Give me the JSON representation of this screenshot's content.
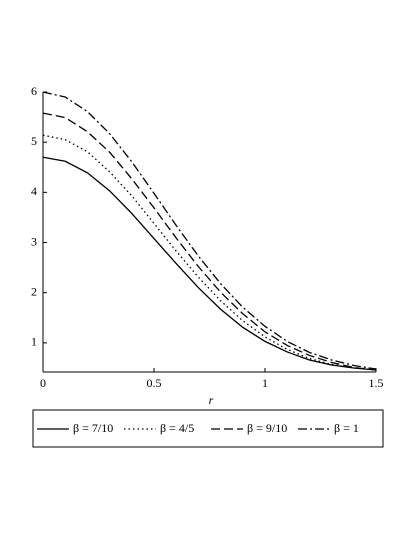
{
  "chart_data": {
    "type": "line",
    "x_label": "r",
    "x": [
      0,
      0.1,
      0.2,
      0.3,
      0.4,
      0.5,
      0.6,
      0.7,
      0.8,
      0.9,
      1.0,
      1.1,
      1.2,
      1.3,
      1.4,
      1.5
    ],
    "series": [
      {
        "name": "β = 7/10",
        "color": "#000000",
        "dash": "solid",
        "values": [
          4.7,
          4.62,
          4.39,
          4.03,
          3.58,
          3.08,
          2.58,
          2.1,
          1.67,
          1.31,
          1.03,
          0.82,
          0.66,
          0.56,
          0.5,
          0.46
        ]
      },
      {
        "name": "β = 4/5",
        "color": "#000000",
        "dash": "dotted",
        "values": [
          5.14,
          5.05,
          4.81,
          4.41,
          3.93,
          3.38,
          2.83,
          2.31,
          1.84,
          1.44,
          1.12,
          0.87,
          0.69,
          0.57,
          0.5,
          0.46
        ]
      },
      {
        "name": "β = 9/10",
        "color": "#000000",
        "dash": "dashed",
        "values": [
          5.58,
          5.49,
          5.21,
          4.8,
          4.27,
          3.69,
          3.09,
          2.52,
          2.01,
          1.58,
          1.22,
          0.95,
          0.75,
          0.61,
          0.51,
          0.46
        ]
      },
      {
        "name": "β = 1",
        "color": "#000000",
        "dash": "dashdot",
        "values": [
          6.0,
          5.9,
          5.61,
          5.17,
          4.61,
          3.98,
          3.34,
          2.73,
          2.18,
          1.71,
          1.33,
          1.03,
          0.81,
          0.66,
          0.55,
          0.48
        ]
      }
    ],
    "xlim": [
      0,
      1.5
    ],
    "xticks": [
      0,
      0.5,
      1,
      1.5
    ],
    "ylim": [
      0.42,
      6
    ],
    "yticks": [
      1,
      2,
      3,
      4,
      5,
      6
    ],
    "legend": "bottom"
  }
}
